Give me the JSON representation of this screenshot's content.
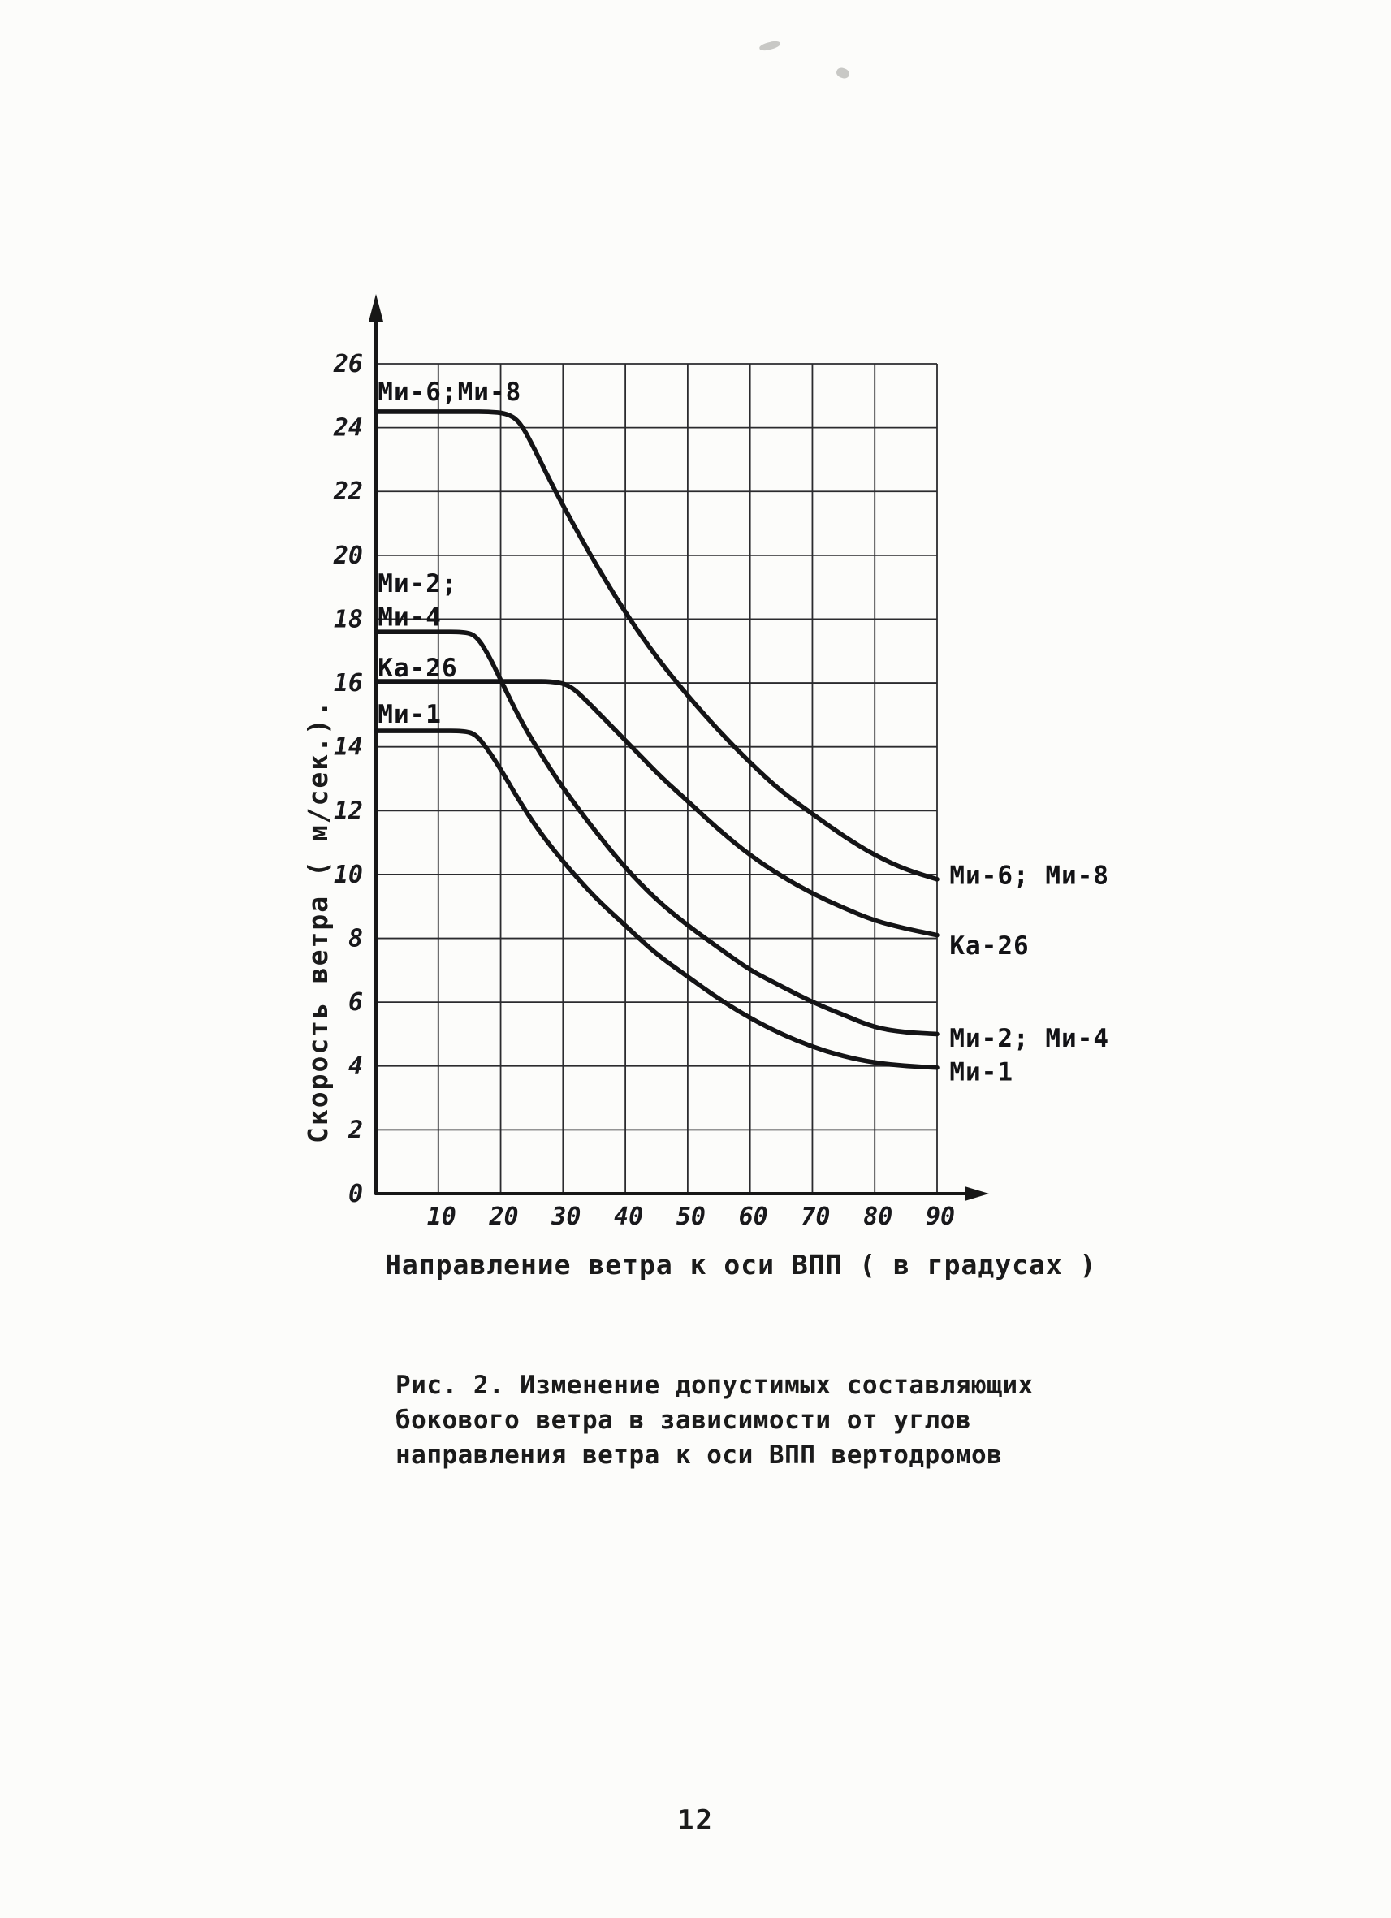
{
  "page": {
    "number": "12"
  },
  "caption": {
    "line1": "Рис. 2. Изменение допустимых составляющих",
    "line2": "бокового ветра в зависимости от  углов",
    "line3": "направления  ветра к оси ВПП вертодромов"
  },
  "chart_data": {
    "type": "line",
    "title": "",
    "xlabel": "Направление ветра к оси ВПП ( в градусах )",
    "ylabel": "Скорость ветра ( м/сек.).",
    "xlim": [
      0,
      90
    ],
    "ylim": [
      0,
      26
    ],
    "x_ticks": [
      10,
      20,
      30,
      40,
      50,
      60,
      70,
      80,
      90
    ],
    "y_ticks": [
      0,
      2,
      4,
      6,
      8,
      10,
      12,
      14,
      16,
      18,
      20,
      22,
      24,
      26
    ],
    "grid": true,
    "ink": "#171717",
    "paper": "#fcfcfa",
    "legend_position": "labels-on-plot",
    "series": [
      {
        "id": "mi6-mi8",
        "name": "Ми-6; Ми-8",
        "x": [
          0,
          5,
          10,
          15,
          18,
          21,
          23,
          25,
          28,
          31,
          35,
          40,
          45,
          50,
          55,
          60,
          65,
          70,
          75,
          80,
          85,
          90
        ],
        "y": [
          24.5,
          24.5,
          24.5,
          24.5,
          24.5,
          24.45,
          24.2,
          23.5,
          22.3,
          21.2,
          19.8,
          18.2,
          16.8,
          15.6,
          14.5,
          13.5,
          12.6,
          11.9,
          11.2,
          10.6,
          10.15,
          9.85
        ]
      },
      {
        "id": "ka-26",
        "name": "Ка-26",
        "x": [
          0,
          5,
          10,
          15,
          20,
          25,
          28,
          31,
          34,
          38,
          42,
          46,
          50,
          55,
          60,
          65,
          70,
          75,
          80,
          85,
          90
        ],
        "y": [
          16.05,
          16.05,
          16.05,
          16.05,
          16.05,
          16.05,
          16.05,
          15.95,
          15.4,
          14.6,
          13.8,
          13.0,
          12.3,
          11.4,
          10.6,
          9.95,
          9.4,
          8.95,
          8.55,
          8.3,
          8.1
        ]
      },
      {
        "id": "mi2-mi4",
        "name": "Ми-2; Ми-4",
        "x": [
          0,
          5,
          10,
          14,
          16,
          18,
          20,
          23,
          26,
          30,
          35,
          40,
          45,
          50,
          55,
          60,
          65,
          70,
          75,
          80,
          85,
          90
        ],
        "y": [
          17.6,
          17.6,
          17.6,
          17.6,
          17.5,
          16.9,
          16.1,
          14.9,
          13.9,
          12.7,
          11.4,
          10.2,
          9.2,
          8.4,
          7.7,
          7.0,
          6.5,
          6.0,
          5.6,
          5.2,
          5.05,
          5.0
        ]
      },
      {
        "id": "mi-1",
        "name": "Ми-1",
        "x": [
          0,
          5,
          10,
          14,
          16,
          18,
          20,
          23,
          26,
          30,
          35,
          40,
          45,
          50,
          55,
          60,
          65,
          70,
          75,
          80,
          85,
          90
        ],
        "y": [
          14.5,
          14.5,
          14.5,
          14.5,
          14.4,
          13.9,
          13.3,
          12.3,
          11.4,
          10.4,
          9.3,
          8.4,
          7.5,
          6.8,
          6.1,
          5.5,
          5.0,
          4.6,
          4.3,
          4.1,
          4.0,
          3.95
        ]
      }
    ],
    "left_labels": [
      {
        "text": "Ми-6;Ми-8",
        "x": 0.3,
        "y": 24.85
      },
      {
        "text": "Ми-2;",
        "x": 0.3,
        "y": 18.85
      },
      {
        "text": "Ми-4",
        "x": 0.3,
        "y": 17.8
      },
      {
        "text": "Ка-26",
        "x": 0.3,
        "y": 16.2
      },
      {
        "text": "Ми-1",
        "x": 0.3,
        "y": 14.75
      }
    ],
    "right_labels": [
      {
        "text": "Ми-6; Ми-8",
        "x": 92,
        "y": 9.7
      },
      {
        "text": "Ка-26",
        "x": 92,
        "y": 7.5
      },
      {
        "text": "Ми-2; Ми-4",
        "x": 92,
        "y": 4.6
      },
      {
        "text": "Ми-1",
        "x": 92,
        "y": 3.55
      }
    ]
  }
}
